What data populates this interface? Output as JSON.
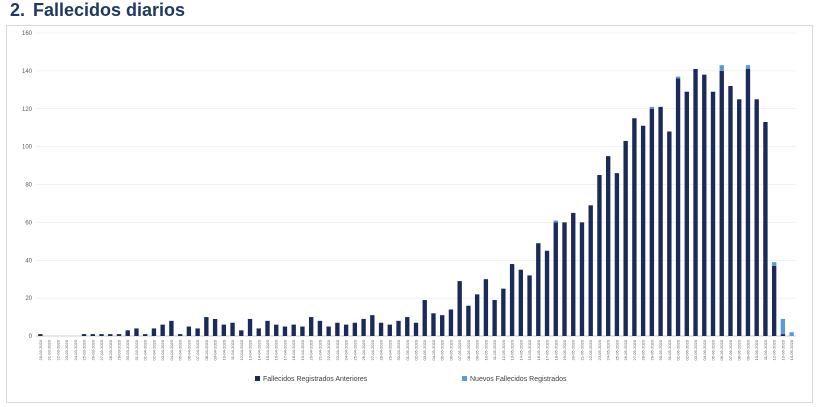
{
  "heading": {
    "number": "2.",
    "title": "Fallecidos diarios"
  },
  "colors": {
    "anteriores": "#1b2a59",
    "nuevos": "#5b9bd5",
    "grid": "#e4e4e4",
    "heading": "#1f3864"
  },
  "chart_data": {
    "type": "bar",
    "stacked": true,
    "title": "",
    "xlabel": "",
    "ylabel": "",
    "ylim": [
      0,
      160
    ],
    "yticks": [
      "0",
      "20",
      "40",
      "60",
      "80",
      "100",
      "120",
      "140",
      "160"
    ],
    "grid": true,
    "legend_position": "bottom",
    "categories": [
      "20-03-2020",
      "21-03-2020",
      "22-03-2020",
      "23-03-2020",
      "24-03-2020",
      "25-03-2020",
      "26-03-2020",
      "27-03-2020",
      "28-03-2020",
      "29-03-2020",
      "30-03-2020",
      "31-03-2020",
      "01-04-2020",
      "02-04-2020",
      "03-04-2020",
      "04-04-2020",
      "05-04-2020",
      "06-04-2020",
      "07-04-2020",
      "08-04-2020",
      "09-04-2020",
      "10-04-2020",
      "11-04-2020",
      "12-04-2020",
      "13-04-2020",
      "14-04-2020",
      "15-04-2020",
      "16-04-2020",
      "17-04-2020",
      "18-04-2020",
      "19-04-2020",
      "20-04-2020",
      "21-04-2020",
      "22-04-2020",
      "23-04-2020",
      "24-04-2020",
      "25-04-2020",
      "26-04-2020",
      "27-04-2020",
      "28-04-2020",
      "29-04-2020",
      "30-04-2020",
      "01-05-2020",
      "02-05-2020",
      "03-05-2020",
      "04-05-2020",
      "05-05-2020",
      "06-05-2020",
      "07-05-2020",
      "08-05-2020",
      "09-05-2020",
      "10-05-2020",
      "11-05-2020",
      "12-05-2020",
      "13-05-2020",
      "14-05-2020",
      "15-05-2020",
      "16-05-2020",
      "17-05-2020",
      "18-05-2020",
      "19-05-2020",
      "20-05-2020",
      "21-05-2020",
      "22-05-2020",
      "23-05-2020",
      "24-05-2020",
      "25-05-2020",
      "26-05-2020",
      "27-05-2020",
      "28-05-2020",
      "29-05-2020",
      "30-05-2020",
      "31-05-2020",
      "01-06-2020",
      "02-06-2020",
      "03-06-2020",
      "04-06-2020",
      "05-06-2020",
      "06-06-2020",
      "07-06-2020",
      "08-06-2020",
      "09-06-2020",
      "10-06-2020",
      "11-06-2020",
      "12-06-2020",
      "13-06-2020",
      "14-06-2020"
    ],
    "series": [
      {
        "name": "Fallecidos Registrados Anteriores",
        "values": [
          1,
          0,
          0,
          0,
          0,
          1,
          1,
          1,
          1,
          1,
          3,
          4,
          1,
          4,
          6,
          8,
          1,
          5,
          4,
          10,
          9,
          6,
          7,
          3,
          9,
          4,
          8,
          6,
          5,
          6,
          5,
          10,
          8,
          5,
          7,
          6,
          7,
          9,
          11,
          7,
          6,
          8,
          10,
          7,
          19,
          12,
          11,
          14,
          29,
          16,
          22,
          30,
          19,
          25,
          38,
          35,
          32,
          49,
          45,
          60,
          60,
          65,
          60,
          69,
          85,
          95,
          86,
          103,
          115,
          111,
          120,
          121,
          108,
          136,
          129,
          141,
          138,
          129,
          140,
          132,
          125,
          141,
          125,
          113,
          37,
          1,
          0
        ]
      },
      {
        "name": "Nuevos Fallecidos Registrados",
        "values": [
          0,
          0,
          0,
          0,
          0,
          0,
          0,
          0,
          0,
          0,
          0,
          0,
          0,
          0,
          0,
          0,
          0,
          0,
          0,
          0,
          0,
          0,
          0,
          0,
          0,
          0,
          0,
          0,
          0,
          0,
          0,
          0,
          0,
          0,
          0,
          0,
          0,
          0,
          0,
          0,
          0,
          0,
          0,
          0,
          0,
          0,
          0,
          0,
          0,
          0,
          0,
          0,
          0,
          0,
          0,
          0,
          0,
          0,
          0,
          1,
          0,
          0,
          0,
          0,
          0,
          0,
          0,
          0,
          0,
          0,
          1,
          0,
          0,
          1,
          0,
          0,
          0,
          0,
          3,
          0,
          0,
          2,
          0,
          0,
          2,
          8,
          2
        ]
      }
    ]
  }
}
